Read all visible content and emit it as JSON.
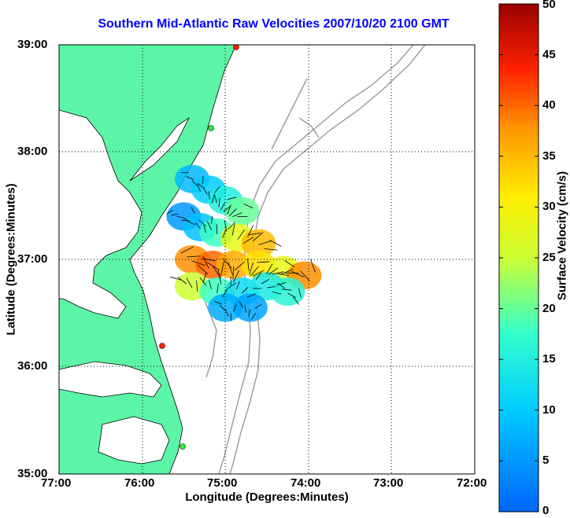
{
  "chart_data": {
    "type": "map",
    "title": "Southern Mid-Atlantic Raw Velocities 2007/10/20 2100 GMT",
    "xlabel": "Longitude (Degrees:Minutes)",
    "ylabel": "Latitude (Degrees:Minutes)",
    "x_ticks": [
      "77:00",
      "76:00",
      "75:00",
      "74:00",
      "73:00",
      "72:00"
    ],
    "y_ticks": [
      "39:00",
      "38:00",
      "37:00",
      "36:00",
      "35:00"
    ],
    "x_range_deg_west": [
      77,
      72
    ],
    "y_range_deg_north": [
      35,
      39
    ],
    "grid": "dotted",
    "colorbar": {
      "label": "Surface Velocity (cm/s)",
      "ticks": [
        "50",
        "45",
        "40",
        "35",
        "30",
        "25",
        "20",
        "15",
        "10",
        "5",
        "0"
      ],
      "range": [
        0,
        50
      ]
    },
    "land_color": "#5cf5a8",
    "bathymetry_color": "#999999",
    "velocity_cells": [
      {
        "lon": -75.4,
        "lat": 37.75,
        "speed": 8
      },
      {
        "lon": -75.2,
        "lat": 37.65,
        "speed": 10
      },
      {
        "lon": -75.0,
        "lat": 37.55,
        "speed": 15
      },
      {
        "lon": -74.8,
        "lat": 37.45,
        "speed": 20
      },
      {
        "lon": -75.5,
        "lat": 37.4,
        "speed": 5
      },
      {
        "lon": -75.3,
        "lat": 37.3,
        "speed": 9
      },
      {
        "lon": -75.1,
        "lat": 37.25,
        "speed": 18
      },
      {
        "lon": -74.85,
        "lat": 37.2,
        "speed": 28
      },
      {
        "lon": -74.6,
        "lat": 37.15,
        "speed": 35
      },
      {
        "lon": -75.4,
        "lat": 37.0,
        "speed": 38
      },
      {
        "lon": -75.15,
        "lat": 36.95,
        "speed": 40
      },
      {
        "lon": -74.9,
        "lat": 36.95,
        "speed": 36
      },
      {
        "lon": -74.6,
        "lat": 36.95,
        "speed": 32
      },
      {
        "lon": -74.3,
        "lat": 36.9,
        "speed": 28
      },
      {
        "lon": -74.05,
        "lat": 36.85,
        "speed": 38
      },
      {
        "lon": -75.4,
        "lat": 36.75,
        "speed": 25
      },
      {
        "lon": -75.1,
        "lat": 36.7,
        "speed": 18
      },
      {
        "lon": -74.8,
        "lat": 36.7,
        "speed": 12
      },
      {
        "lon": -74.5,
        "lat": 36.75,
        "speed": 14
      },
      {
        "lon": -74.25,
        "lat": 36.7,
        "speed": 16
      },
      {
        "lon": -75.0,
        "lat": 36.55,
        "speed": 7
      },
      {
        "lon": -74.7,
        "lat": 36.55,
        "speed": 6
      }
    ]
  }
}
